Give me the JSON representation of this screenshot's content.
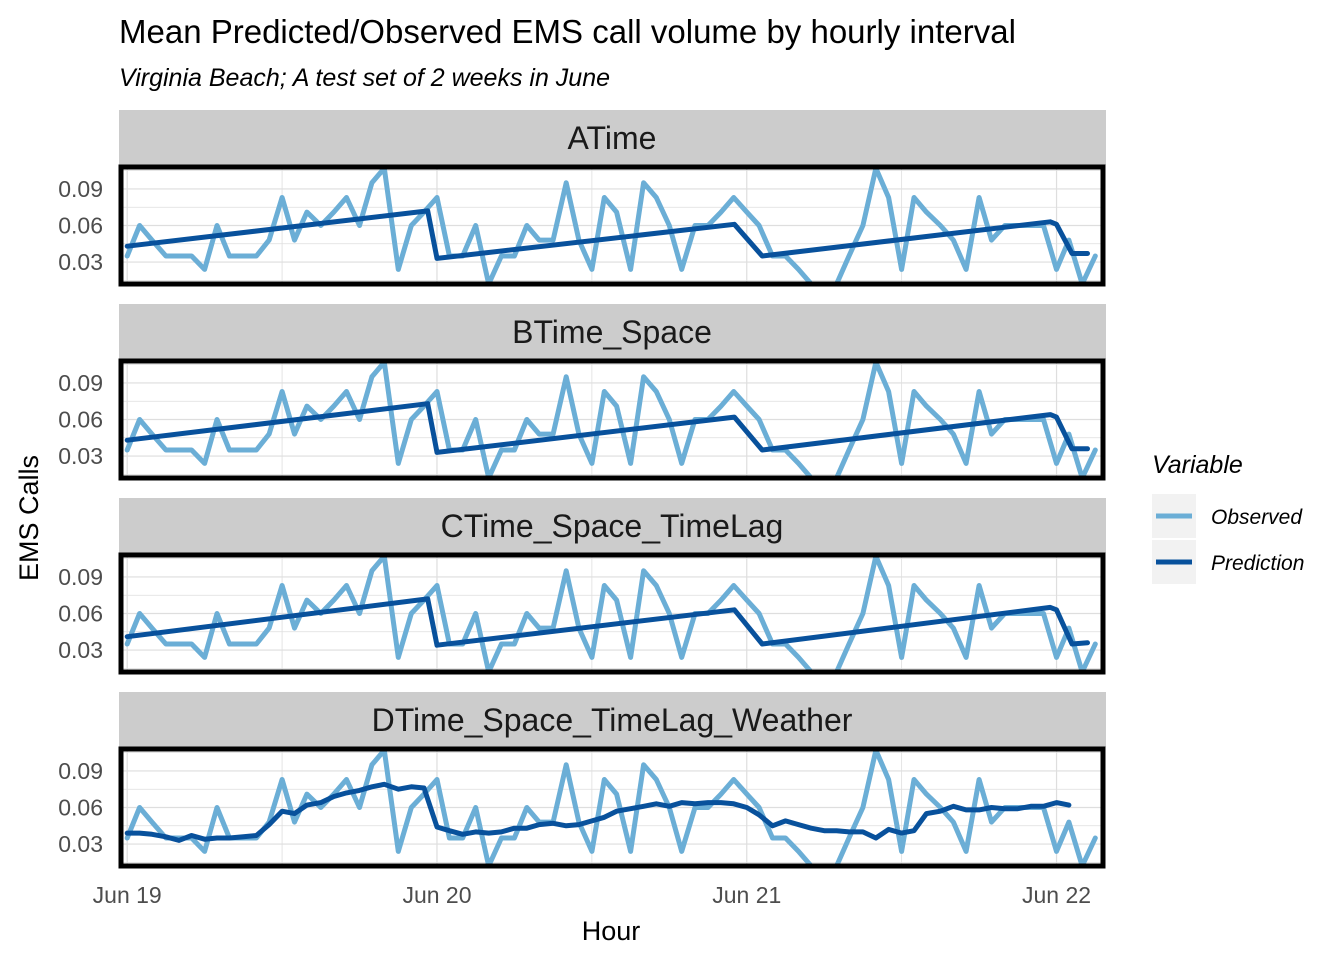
{
  "chart_data": {
    "type": "line",
    "title": "Mean Predicted/Observed EMS call volume by hourly interval",
    "subtitle": "Virginia Beach; A test set of 2 weeks in June",
    "xlabel": "Hour",
    "ylabel": "EMS Calls",
    "xlim": [
      -0.02,
      3.15
    ],
    "ylim": [
      0.012,
      0.108
    ],
    "x_ticks": [
      0,
      1,
      2,
      3
    ],
    "x_tick_labels": [
      "Jun 19",
      "Jun 20",
      "Jun 21",
      "Jun 22"
    ],
    "y_ticks": [
      0.03,
      0.06,
      0.09
    ],
    "y_tick_labels": [
      "0.03",
      "0.06",
      "0.09"
    ],
    "grid": true,
    "legend": {
      "title": "Variable",
      "position": "right",
      "entries": [
        {
          "name": "Observed",
          "color": "#6baed6"
        },
        {
          "name": "Prediction",
          "color": "#08519c"
        }
      ]
    },
    "observed_x": [
      0,
      0.04,
      0.08,
      0.125,
      0.167,
      0.208,
      0.25,
      0.29,
      0.33,
      0.375,
      0.417,
      0.458,
      0.5,
      0.54,
      0.58,
      0.625,
      0.667,
      0.708,
      0.75,
      0.79,
      0.83,
      0.875,
      0.917,
      0.958,
      1.0,
      1.04,
      1.083,
      1.125,
      1.167,
      1.208,
      1.25,
      1.29,
      1.33,
      1.375,
      1.417,
      1.458,
      1.5,
      1.54,
      1.58,
      1.625,
      1.667,
      1.708,
      1.75,
      1.79,
      1.833,
      1.875,
      1.917,
      1.958,
      2.0,
      2.04,
      2.083,
      2.125,
      2.167,
      2.208,
      2.25,
      2.29,
      2.33,
      2.375,
      2.417,
      2.458,
      2.5,
      2.54,
      2.58,
      2.625,
      2.667,
      2.708,
      2.75,
      2.79,
      2.833,
      2.875,
      2.917,
      2.958,
      3.0,
      3.04,
      3.083,
      3.125
    ],
    "panels": [
      {
        "label": "ATime",
        "observed": [
          0.035,
          0.06,
          0.048,
          0.035,
          0.035,
          0.035,
          0.024,
          0.06,
          0.035,
          0.035,
          0.035,
          0.048,
          0.083,
          0.048,
          0.071,
          0.06,
          0.071,
          0.083,
          0.06,
          0.095,
          0.107,
          0.024,
          0.06,
          0.071,
          0.083,
          0.035,
          0.035,
          0.06,
          0.012,
          0.035,
          0.035,
          0.06,
          0.048,
          0.048,
          0.095,
          0.048,
          0.024,
          0.083,
          0.071,
          0.024,
          0.095,
          0.083,
          0.06,
          0.024,
          0.06,
          0.06,
          0.071,
          0.083,
          0.071,
          0.06,
          0.035,
          0.035,
          0.024,
          0.012,
          0.012,
          0.012,
          0.035,
          0.06,
          0.107,
          0.083,
          0.024,
          0.083,
          0.071,
          0.06,
          0.048,
          0.024,
          0.083,
          0.048,
          0.06,
          0.06,
          0.06,
          0.06,
          0.024,
          0.048,
          0.012,
          0.035
        ],
        "prediction_x": [
          0,
          0.97,
          1.0,
          1.96,
          2.05,
          2.98,
          3.0,
          3.05,
          3.1
        ],
        "prediction": [
          0.043,
          0.072,
          0.033,
          0.061,
          0.035,
          0.063,
          0.061,
          0.037,
          0.037
        ]
      },
      {
        "label": "BTime_Space",
        "observed": [
          0.035,
          0.06,
          0.048,
          0.035,
          0.035,
          0.035,
          0.024,
          0.06,
          0.035,
          0.035,
          0.035,
          0.048,
          0.083,
          0.048,
          0.071,
          0.06,
          0.071,
          0.083,
          0.06,
          0.095,
          0.107,
          0.024,
          0.06,
          0.071,
          0.083,
          0.035,
          0.035,
          0.06,
          0.012,
          0.035,
          0.035,
          0.06,
          0.048,
          0.048,
          0.095,
          0.048,
          0.024,
          0.083,
          0.071,
          0.024,
          0.095,
          0.083,
          0.06,
          0.024,
          0.06,
          0.06,
          0.071,
          0.083,
          0.071,
          0.06,
          0.035,
          0.035,
          0.024,
          0.012,
          0.012,
          0.012,
          0.035,
          0.06,
          0.107,
          0.083,
          0.024,
          0.083,
          0.071,
          0.06,
          0.048,
          0.024,
          0.083,
          0.048,
          0.06,
          0.06,
          0.06,
          0.06,
          0.024,
          0.048,
          0.012,
          0.035
        ],
        "prediction_x": [
          0,
          0.97,
          1.0,
          1.96,
          2.05,
          2.98,
          3.0,
          3.05,
          3.1
        ],
        "prediction": [
          0.043,
          0.073,
          0.033,
          0.062,
          0.035,
          0.064,
          0.062,
          0.036,
          0.036
        ]
      },
      {
        "label": "CTime_Space_TimeLag",
        "observed": [
          0.035,
          0.06,
          0.048,
          0.035,
          0.035,
          0.035,
          0.024,
          0.06,
          0.035,
          0.035,
          0.035,
          0.048,
          0.083,
          0.048,
          0.071,
          0.06,
          0.071,
          0.083,
          0.06,
          0.095,
          0.107,
          0.024,
          0.06,
          0.071,
          0.083,
          0.035,
          0.035,
          0.06,
          0.012,
          0.035,
          0.035,
          0.06,
          0.048,
          0.048,
          0.095,
          0.048,
          0.024,
          0.083,
          0.071,
          0.024,
          0.095,
          0.083,
          0.06,
          0.024,
          0.06,
          0.06,
          0.071,
          0.083,
          0.071,
          0.06,
          0.035,
          0.035,
          0.024,
          0.012,
          0.012,
          0.012,
          0.035,
          0.06,
          0.107,
          0.083,
          0.024,
          0.083,
          0.071,
          0.06,
          0.048,
          0.024,
          0.083,
          0.048,
          0.06,
          0.06,
          0.06,
          0.06,
          0.024,
          0.048,
          0.012,
          0.035
        ],
        "prediction_x": [
          0,
          0.97,
          1.0,
          1.96,
          2.05,
          2.98,
          3.0,
          3.05,
          3.1
        ],
        "prediction": [
          0.041,
          0.072,
          0.034,
          0.063,
          0.035,
          0.065,
          0.063,
          0.035,
          0.036
        ]
      },
      {
        "label": "DTime_Space_TimeLag_Weather",
        "observed": [
          0.035,
          0.06,
          0.048,
          0.035,
          0.035,
          0.035,
          0.024,
          0.06,
          0.035,
          0.035,
          0.035,
          0.048,
          0.083,
          0.048,
          0.071,
          0.06,
          0.071,
          0.083,
          0.06,
          0.095,
          0.107,
          0.024,
          0.06,
          0.071,
          0.083,
          0.035,
          0.035,
          0.06,
          0.012,
          0.035,
          0.035,
          0.06,
          0.048,
          0.048,
          0.095,
          0.048,
          0.024,
          0.083,
          0.071,
          0.024,
          0.095,
          0.083,
          0.06,
          0.024,
          0.06,
          0.06,
          0.071,
          0.083,
          0.071,
          0.06,
          0.035,
          0.035,
          0.024,
          0.012,
          0.012,
          0.012,
          0.035,
          0.06,
          0.107,
          0.083,
          0.024,
          0.083,
          0.071,
          0.06,
          0.048,
          0.024,
          0.083,
          0.048,
          0.06,
          0.06,
          0.06,
          0.06,
          0.024,
          0.048,
          0.012,
          0.035
        ],
        "prediction_x": [
          0,
          0.04,
          0.08,
          0.125,
          0.167,
          0.208,
          0.25,
          0.29,
          0.33,
          0.375,
          0.417,
          0.458,
          0.5,
          0.54,
          0.58,
          0.625,
          0.667,
          0.708,
          0.75,
          0.79,
          0.83,
          0.875,
          0.917,
          0.958,
          1.0,
          1.04,
          1.083,
          1.125,
          1.167,
          1.208,
          1.25,
          1.29,
          1.33,
          1.375,
          1.417,
          1.458,
          1.5,
          1.54,
          1.58,
          1.625,
          1.667,
          1.708,
          1.75,
          1.79,
          1.833,
          1.875,
          1.917,
          1.958,
          2.0,
          2.04,
          2.083,
          2.125,
          2.167,
          2.208,
          2.25,
          2.29,
          2.33,
          2.375,
          2.417,
          2.458,
          2.5,
          2.54,
          2.58,
          2.625,
          2.667,
          2.708,
          2.75,
          2.79,
          2.833,
          2.875,
          2.917,
          2.958,
          3.0,
          3.04
        ],
        "prediction": [
          0.039,
          0.039,
          0.038,
          0.036,
          0.033,
          0.037,
          0.034,
          0.035,
          0.035,
          0.036,
          0.037,
          0.046,
          0.057,
          0.055,
          0.062,
          0.064,
          0.069,
          0.072,
          0.074,
          0.077,
          0.079,
          0.075,
          0.077,
          0.076,
          0.044,
          0.041,
          0.038,
          0.04,
          0.039,
          0.04,
          0.043,
          0.043,
          0.046,
          0.047,
          0.045,
          0.046,
          0.049,
          0.052,
          0.057,
          0.059,
          0.061,
          0.063,
          0.061,
          0.064,
          0.063,
          0.064,
          0.064,
          0.063,
          0.06,
          0.054,
          0.045,
          0.049,
          0.046,
          0.043,
          0.041,
          0.041,
          0.04,
          0.04,
          0.035,
          0.042,
          0.039,
          0.041,
          0.055,
          0.057,
          0.061,
          0.058,
          0.058,
          0.06,
          0.059,
          0.059,
          0.061,
          0.061,
          0.064,
          0.062
        ]
      }
    ]
  }
}
